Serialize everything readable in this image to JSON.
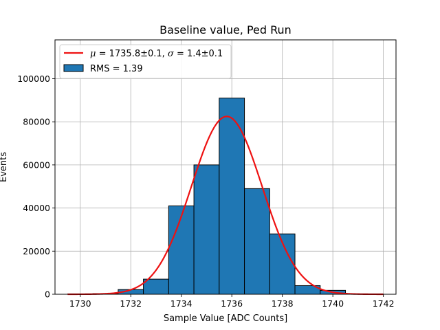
{
  "chart_data": {
    "type": "bar",
    "title": "Baseline value, Ped Run",
    "xlabel": "Sample Value [ADC Counts]",
    "ylabel": "Events",
    "xlim": [
      1729.0,
      1742.5
    ],
    "ylim": [
      0,
      118000
    ],
    "grid": true,
    "legend_placement": "top-left",
    "x_ticks": [
      1730,
      1732,
      1734,
      1736,
      1738,
      1740,
      1742
    ],
    "x_tick_labels": [
      "1730",
      "1732",
      "1734",
      "1736",
      "1738",
      "1740",
      "1742"
    ],
    "y_ticks": [
      0,
      20000,
      40000,
      60000,
      80000,
      100000
    ],
    "y_tick_labels": [
      "0",
      "20000",
      "40000",
      "60000",
      "80000",
      "100000"
    ],
    "bin_edges": [
      1729.5,
      1730.5,
      1731.5,
      1732.5,
      1733.5,
      1734.5,
      1735.5,
      1736.5,
      1737.5,
      1738.5,
      1739.5,
      1740.5
    ],
    "series": [
      {
        "name": "RMS = 1.39",
        "kind": "histogram",
        "color": "#1f77b4",
        "edge_color": "#000000",
        "values": [
          100,
          300,
          2200,
          7000,
          41000,
          60000,
          91000,
          49000,
          28000,
          4000,
          1800
        ]
      },
      {
        "name": "$\\mu = 1735.8\\pm0.1$, $\\sigma = 1.4\\pm0.1$",
        "kind": "gaussian-fit",
        "color": "#ee1111",
        "mu": 1735.8,
        "sigma": 1.4,
        "amplitude": 82500,
        "x_range": [
          1729.5,
          1742.0
        ]
      }
    ],
    "legend_entries": [
      {
        "type": "line",
        "color": "#ee1111",
        "parts": [
          {
            "text": "μ",
            "italic": true
          },
          {
            "text": " = 1735.8±0.1, ",
            "italic": false
          },
          {
            "text": "σ",
            "italic": true
          },
          {
            "text": " = 1.4±0.1",
            "italic": false
          }
        ]
      },
      {
        "type": "patch",
        "color": "#1f77b4",
        "label": "RMS = 1.39"
      }
    ]
  }
}
